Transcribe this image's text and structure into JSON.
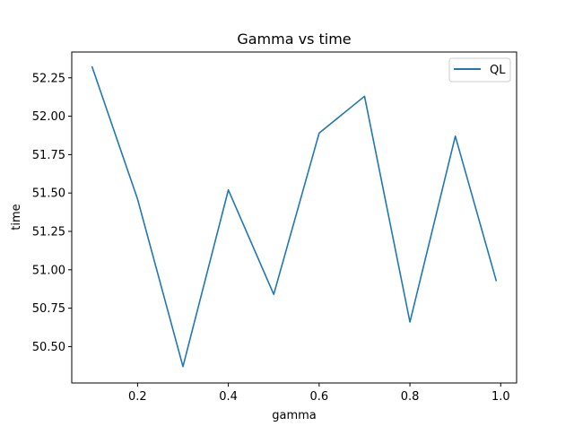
{
  "chart_data": {
    "type": "line",
    "title": "Gamma vs time",
    "xlabel": "gamma",
    "ylabel": "time",
    "xlim": [
      0.055,
      1.035
    ],
    "ylim": [
      50.263,
      52.418
    ],
    "xticks": [
      0.2,
      0.4,
      0.6,
      0.8,
      1.0
    ],
    "xtick_labels": [
      "0.2",
      "0.4",
      "0.6",
      "0.8",
      "1.0"
    ],
    "yticks": [
      50.5,
      50.75,
      51.0,
      51.25,
      51.5,
      51.75,
      52.0,
      52.25
    ],
    "ytick_labels": [
      "50.50",
      "50.75",
      "51.00",
      "51.25",
      "51.50",
      "51.75",
      "52.00",
      "52.25"
    ],
    "grid": false,
    "legend_position": "top-right",
    "series": [
      {
        "name": "QL",
        "color": "#1f77b4",
        "x": [
          0.1,
          0.2,
          0.3,
          0.4,
          0.5,
          0.6,
          0.7,
          0.8,
          0.9,
          0.99
        ],
        "y": [
          52.32,
          51.46,
          50.37,
          51.52,
          50.84,
          51.89,
          52.13,
          50.66,
          51.87,
          50.93
        ]
      }
    ]
  }
}
